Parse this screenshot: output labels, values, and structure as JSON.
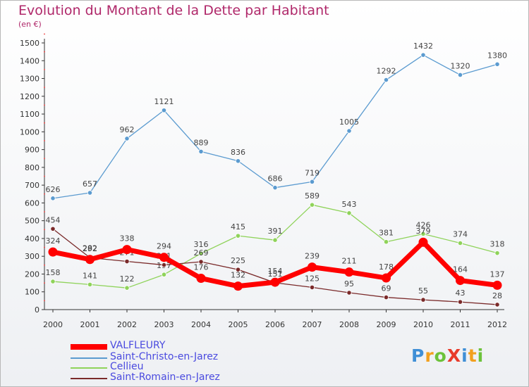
{
  "title": "Evolution du Montant de la Dette par Habitant",
  "subtitle": "(en €)",
  "logo": {
    "text": "ProXiti",
    "letters": [
      {
        "ch": "P",
        "color": "#3f8fd6"
      },
      {
        "ch": "r",
        "color": "#f2a01e"
      },
      {
        "ch": "o",
        "color": "#6cc23a"
      },
      {
        "ch": "X",
        "color": "#e83b2a"
      },
      {
        "ch": "i",
        "color": "#3f8fd6"
      },
      {
        "ch": "t",
        "color": "#f2a01e"
      },
      {
        "ch": "i",
        "color": "#6cc23a"
      }
    ]
  },
  "chart_data": {
    "type": "line",
    "x": [
      "2000",
      "2001",
      "2002",
      "2003",
      "2004",
      "2005",
      "2006",
      "2007",
      "2008",
      "2009",
      "2010",
      "2011",
      "2012"
    ],
    "ylim": [
      0,
      1500
    ],
    "yticks": [
      0,
      100,
      200,
      300,
      400,
      500,
      600,
      700,
      800,
      900,
      1000,
      1100,
      1200,
      1300,
      1400,
      1500
    ],
    "grid": false,
    "legend_position": "bottom-left",
    "series": [
      {
        "name": "VALFLEURY",
        "color": "#ff0000",
        "values": [
          324,
          282,
          338,
          294,
          176,
          132,
          154,
          239,
          211,
          178,
          379,
          164,
          137
        ]
      },
      {
        "name": "Saint-Christo-en-Jarez",
        "color": "#5b9bd0",
        "values": [
          626,
          657,
          962,
          1121,
          889,
          836,
          686,
          719,
          1005,
          1292,
          1432,
          1320,
          1380
        ]
      },
      {
        "name": "Cellieu",
        "color": "#8fd35a",
        "values": [
          158,
          141,
          122,
          197,
          316,
          415,
          391,
          589,
          543,
          381,
          426,
          374,
          318
        ]
      },
      {
        "name": "Saint-Romain-en-Jarez",
        "color": "#7a2a2a",
        "values": [
          454,
          292,
          271,
          251,
          269,
          225,
          151,
          125,
          95,
          69,
          55,
          43,
          28
        ]
      }
    ]
  }
}
